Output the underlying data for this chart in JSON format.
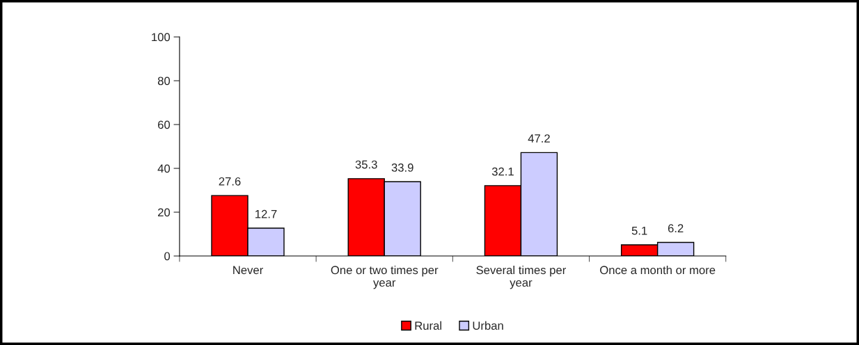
{
  "chart_data": {
    "type": "bar",
    "categories": [
      "Never",
      "One or two times per year",
      "Several times per year",
      "Once a month or more"
    ],
    "series": [
      {
        "name": "Rural",
        "color": "#ff0000",
        "values": [
          27.6,
          35.3,
          32.1,
          5.1
        ]
      },
      {
        "name": "Urban",
        "color": "#ccccff",
        "values": [
          12.7,
          33.9,
          47.2,
          6.2
        ]
      }
    ],
    "ylim": [
      0,
      100
    ],
    "yticks": [
      0,
      20,
      40,
      60,
      80,
      100
    ],
    "grid": false,
    "legend": "bottom",
    "data_labels": true
  }
}
